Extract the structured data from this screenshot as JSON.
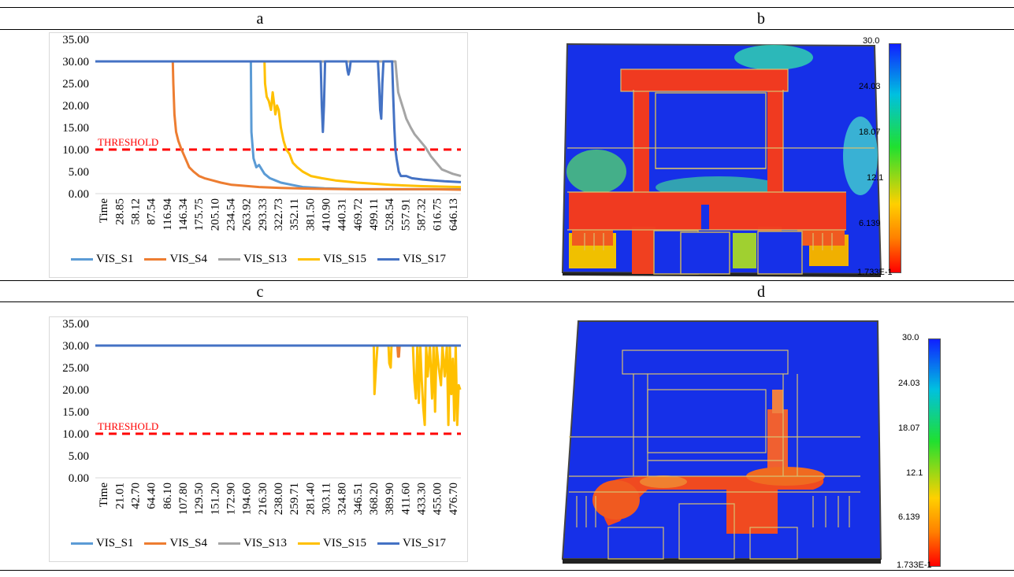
{
  "panels": {
    "a": "a",
    "b": "b",
    "c": "c",
    "d": "d"
  },
  "threshold_label": "THRESHOLD",
  "colorbar_labels": [
    "30.0",
    "24.03",
    "18.07",
    "12.1",
    "6.139",
    "1.733E-1"
  ],
  "series_colors": {
    "VIS_S1": "#5b9bd5",
    "VIS_S4": "#ed7d31",
    "VIS_S13": "#a5a5a5",
    "VIS_S15": "#ffc000",
    "VIS_S17": "#4472c4"
  },
  "threshold_color": "#ff0000",
  "chart_data": [
    {
      "type": "line",
      "panel": "a",
      "x_label": "Time",
      "x_ticks": [
        "28.85",
        "58.12",
        "87.54",
        "116.94",
        "146.34",
        "175.75",
        "205.10",
        "234.54",
        "263.92",
        "293.33",
        "322.73",
        "352.11",
        "381.50",
        "410.90",
        "440.31",
        "469.72",
        "499.11",
        "528.54",
        "557.91",
        "587.32",
        "616.75",
        "646.13"
      ],
      "y_ticks": [
        "35.00",
        "30.00",
        "25.00",
        "20.00",
        "15.00",
        "10.00",
        "5.00",
        "0.00"
      ],
      "ylim": [
        0,
        35
      ],
      "xlim": [
        0,
        670
      ],
      "threshold": 10,
      "legend": [
        "VIS_S1",
        "VIS_S4",
        "VIS_S13",
        "VIS_S15",
        "VIS_S17"
      ],
      "series": [
        {
          "name": "VIS_S1",
          "x": [
            0,
            285,
            286,
            290,
            295,
            300,
            305,
            310,
            320,
            330,
            340,
            360,
            380,
            420,
            480,
            560,
            620,
            670
          ],
          "y": [
            30,
            30,
            14,
            8,
            6,
            6.5,
            5.5,
            4.5,
            3.5,
            3,
            2.5,
            2,
            1.5,
            1.2,
            1,
            1,
            1,
            1
          ]
        },
        {
          "name": "VIS_S4",
          "x": [
            0,
            142,
            143,
            145,
            148,
            152,
            158,
            165,
            172,
            180,
            190,
            200,
            215,
            230,
            250,
            270,
            300,
            340,
            400,
            470,
            550,
            620,
            670
          ],
          "y": [
            30,
            30,
            25,
            18,
            14,
            12,
            10,
            8,
            6,
            5,
            4,
            3.5,
            3,
            2.5,
            2,
            1.8,
            1.5,
            1.3,
            1.1,
            1,
            1,
            1,
            0.9
          ]
        },
        {
          "name": "VIS_S13",
          "x": [
            0,
            550,
            552,
            555,
            560,
            565,
            570,
            578,
            585,
            595,
            605,
            615,
            625,
            635,
            645,
            655,
            670
          ],
          "y": [
            30,
            30,
            27,
            23,
            21,
            19,
            17,
            15,
            13.5,
            12,
            10.5,
            8.5,
            7,
            5.5,
            5,
            4.5,
            4
          ]
        },
        {
          "name": "VIS_S15",
          "x": [
            0,
            310,
            311,
            314,
            318,
            322,
            325,
            328,
            330,
            333,
            336,
            340,
            345,
            350,
            356,
            362,
            370,
            380,
            395,
            415,
            440,
            480,
            540,
            600,
            670
          ],
          "y": [
            30,
            30,
            25,
            22,
            21,
            19,
            23,
            20,
            18,
            20,
            19,
            15,
            12,
            10,
            9,
            7,
            6,
            5,
            4,
            3.5,
            3,
            2.5,
            2,
            1.7,
            1.5
          ]
        },
        {
          "name": "VIS_S17",
          "x": [
            0,
            413,
            415,
            417,
            419,
            421,
            423,
            460,
            462,
            464,
            466,
            468,
            518,
            520,
            522,
            524,
            526,
            528,
            544,
            546,
            548,
            550,
            552,
            556,
            560,
            570,
            580,
            600,
            620,
            640,
            670
          ],
          "y": [
            30,
            30,
            20,
            14,
            20,
            30,
            30,
            30,
            28,
            27,
            28,
            30,
            30,
            25,
            19,
            17,
            25,
            30,
            30,
            22,
            15,
            10,
            8,
            5,
            4,
            4,
            3.5,
            3.2,
            3,
            2.8,
            2.6
          ]
        }
      ]
    },
    {
      "type": "line",
      "panel": "c",
      "x_label": "Time",
      "x_ticks": [
        "21.01",
        "42.70",
        "64.40",
        "86.10",
        "107.80",
        "129.50",
        "151.20",
        "172.90",
        "194.60",
        "216.30",
        "238.00",
        "259.71",
        "281.40",
        "303.11",
        "324.80",
        "346.51",
        "368.20",
        "389.90",
        "411.60",
        "433.30",
        "455.00",
        "476.70"
      ],
      "y_ticks": [
        "35.00",
        "30.00",
        "25.00",
        "20.00",
        "15.00",
        "10.00",
        "5.00",
        "0.00"
      ],
      "ylim": [
        0,
        35
      ],
      "xlim": [
        0,
        495
      ],
      "threshold": 10,
      "legend": [
        "VIS_S1",
        "VIS_S4",
        "VIS_S13",
        "VIS_S15",
        "VIS_S17"
      ],
      "series": [
        {
          "name": "VIS_S1",
          "x": [
            0,
            495
          ],
          "y": [
            30,
            30
          ]
        },
        {
          "name": "VIS_S4",
          "x": [
            0,
            409,
            410,
            411,
            412,
            495
          ],
          "y": [
            30,
            30,
            27.5,
            27.5,
            30,
            30
          ]
        },
        {
          "name": "VIS_S13",
          "x": [
            0,
            495
          ],
          "y": [
            30,
            30
          ]
        },
        {
          "name": "VIS_S15",
          "x": [
            0,
            377,
            378,
            380,
            382,
            397,
            398,
            400,
            401,
            430,
            432,
            434,
            436,
            438,
            440,
            442,
            444,
            446,
            448,
            450,
            453,
            456,
            458,
            460,
            462,
            465,
            468,
            470,
            473,
            476,
            478,
            480,
            482,
            484,
            486,
            488,
            490,
            492,
            494
          ],
          "y": [
            30,
            30,
            19,
            25,
            30,
            30,
            26,
            25,
            30,
            30,
            22,
            18,
            30,
            17,
            30,
            22,
            16,
            12,
            30,
            23,
            30,
            18,
            30,
            15,
            30,
            25,
            21,
            30,
            23,
            30,
            12,
            30,
            19,
            27,
            13,
            30,
            12,
            21,
            20
          ]
        },
        {
          "name": "VIS_S17",
          "x": [
            0,
            495
          ],
          "y": [
            30,
            30
          ]
        }
      ]
    }
  ]
}
